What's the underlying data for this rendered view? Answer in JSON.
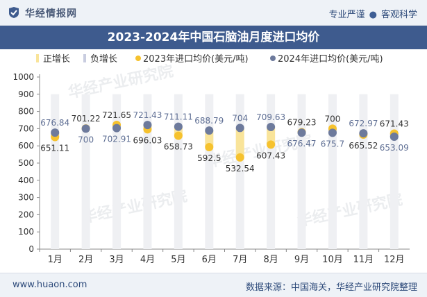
{
  "header": {
    "brand": "华经情报网",
    "slogan_left": "专业严谨",
    "slogan_right": "客观科学"
  },
  "title": "2023-2024年中国石脑油月度进口均价",
  "footer": {
    "url": "www.huaon.com",
    "source": "数据来源：中国海关，华经产业研究院整理"
  },
  "watermark": "华经产业研究院",
  "colors": {
    "series2023": "#f6c22e",
    "series2024": "#6d7a9c",
    "increase": "#f9e49a",
    "decrease": "#c9cde0",
    "title_bg": "#3e5b8e"
  },
  "chart_data": {
    "type": "line",
    "title": "2023-2024年中国石脑油月度进口均价",
    "categories": [
      "1月",
      "2月",
      "3月",
      "4月",
      "5月",
      "6月",
      "7月",
      "8月",
      "9月",
      "10月",
      "11月",
      "12月"
    ],
    "series": [
      {
        "name": "2023年进口均价(美元/吨)",
        "values": [
          651.11,
          701.22,
          721.65,
          696.03,
          658.73,
          592.5,
          532.54,
          607.43,
          679.23,
          700,
          665.52,
          671.43
        ]
      },
      {
        "name": "2024年进口均价(美元/吨)",
        "values": [
          676.84,
          700,
          702.91,
          721.43,
          711.11,
          688.79,
          704,
          709.63,
          676.47,
          675.7,
          672.97,
          653.09
        ]
      }
    ],
    "legend": [
      "正增长",
      "负增长",
      "2023年进口均价(美元/吨)",
      "2024年进口均价(美元/吨)"
    ],
    "legend_position": "top",
    "ylim": [
      0,
      1000
    ],
    "yticks": [
      "0",
      "100",
      "200",
      "300",
      "400",
      "500",
      "600",
      "700",
      "800",
      "900",
      "1000"
    ],
    "grid": false,
    "labels_2023": [
      "651.11",
      "701.22",
      "721.65",
      "696.03",
      "658.73",
      "592.5",
      "532.54",
      "607.43",
      "679.23",
      "700",
      "665.52",
      "671.43"
    ],
    "labels_2024": [
      "676.84",
      "700",
      "702.91",
      "721.43",
      "711.11",
      "688.79",
      "704",
      "709.63",
      "676.47",
      "675.7",
      "672.97",
      "653.09"
    ]
  }
}
